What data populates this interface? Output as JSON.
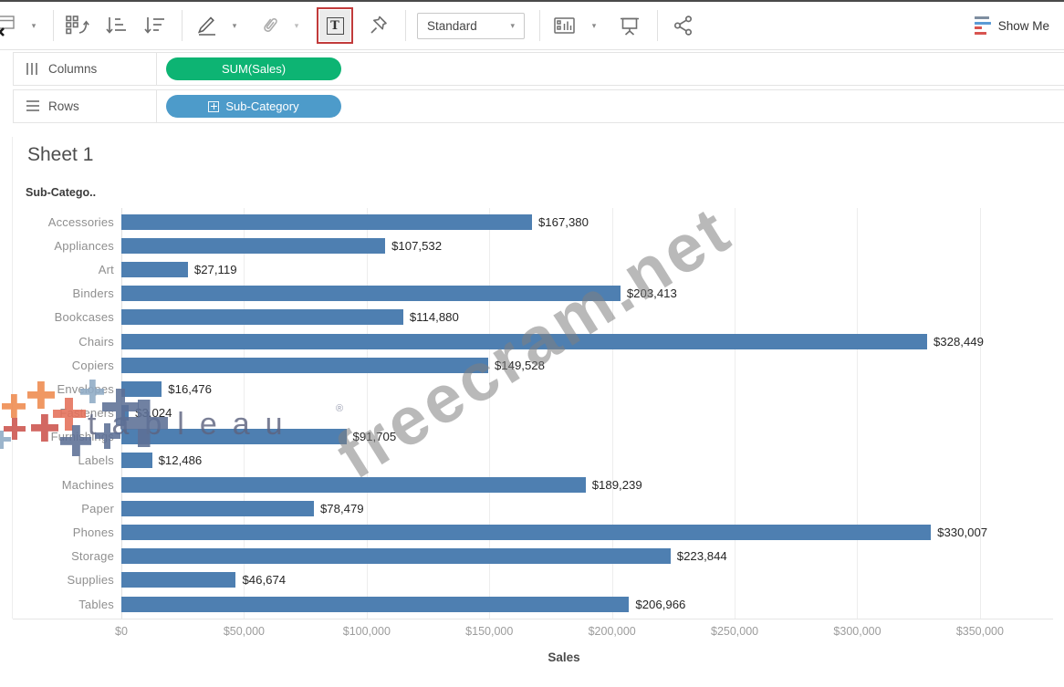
{
  "toolbar": {
    "view_mode": "Standard",
    "show_me_label": "Show Me",
    "annotation_color": "#c13b3b",
    "text_label_button_glyph": "T"
  },
  "shelves": {
    "columns": {
      "label": "Columns",
      "pill": "SUM(Sales)",
      "pill_color": "#0db473"
    },
    "rows": {
      "label": "Rows",
      "pill": "Sub-Category",
      "pill_color": "#4d9bca"
    }
  },
  "sheet": {
    "title": "Sheet 1",
    "row_header": "Sub-Catego.."
  },
  "watermarks": {
    "diagonal_text": "freecram.net",
    "logo_text": "tableau",
    "logo_registered": "®",
    "logo_colors": {
      "orange": "#ef8a4e",
      "salmon": "#e4705a",
      "red": "#cc544d",
      "slate_blue": "#5d7096",
      "light_blue": "#8fabc6",
      "wordmark": "#5d6480"
    }
  },
  "chart_data": {
    "type": "bar",
    "orientation": "horizontal",
    "title": "Sheet 1",
    "categories": [
      "Accessories",
      "Appliances",
      "Art",
      "Binders",
      "Bookcases",
      "Chairs",
      "Copiers",
      "Envelopes",
      "Fasteners",
      "Furnishings",
      "Labels",
      "Machines",
      "Paper",
      "Phones",
      "Storage",
      "Supplies",
      "Tables"
    ],
    "values": [
      167380,
      107532,
      27119,
      203413,
      114880,
      328449,
      149528,
      16476,
      3024,
      91705,
      12486,
      189239,
      78479,
      330007,
      223844,
      46674,
      206966
    ],
    "value_labels": [
      "$167,380",
      "$107,532",
      "$27,119",
      "$203,413",
      "$114,880",
      "$328,449",
      "$149,528",
      "$16,476",
      "$3,024",
      "$91,705",
      "$12,486",
      "$189,239",
      "$78,479",
      "$330,007",
      "$223,844",
      "$46,674",
      "$206,966"
    ],
    "xlabel": "Sales",
    "x_ticks": [
      "$0",
      "$50,000",
      "$100,000",
      "$150,000",
      "$200,000",
      "$250,000",
      "$300,000",
      "$350,000"
    ],
    "xlim": [
      0,
      350000
    ],
    "bar_color": "#4e7fb1",
    "gridlines": true,
    "mark_labels": true,
    "legend": "none"
  }
}
